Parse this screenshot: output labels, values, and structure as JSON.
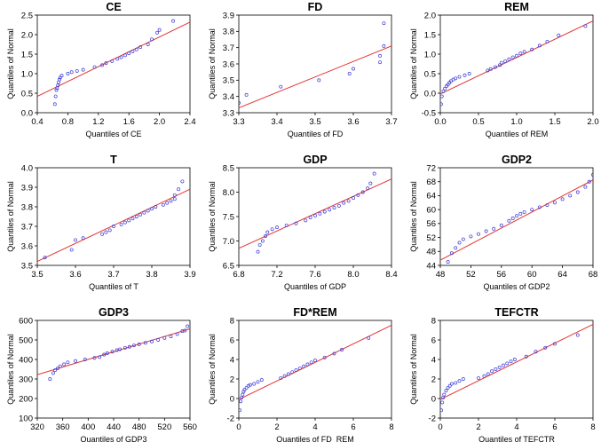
{
  "chart_data": [
    {
      "type": "scatter",
      "title": "CE",
      "xlabel": "Quantiles of CE",
      "ylabel": "Quantiles of Normal",
      "xlim": [
        0.4,
        2.4
      ],
      "ylim": [
        0.0,
        2.5
      ],
      "xticks": [
        "0.4",
        "0.8",
        "1.2",
        "1.6",
        "2.0",
        "2.4"
      ],
      "yticks": [
        "0.0",
        "0.5",
        "1.0",
        "1.5",
        "2.0",
        "2.5"
      ],
      "line": [
        [
          0.4,
          0.42
        ],
        [
          2.4,
          2.32
        ]
      ],
      "points": [
        [
          0.63,
          0.22
        ],
        [
          0.64,
          0.42
        ],
        [
          0.65,
          0.58
        ],
        [
          0.66,
          0.63
        ],
        [
          0.67,
          0.7
        ],
        [
          0.68,
          0.78
        ],
        [
          0.69,
          0.85
        ],
        [
          0.7,
          0.9
        ],
        [
          0.72,
          0.95
        ],
        [
          0.8,
          1.0
        ],
        [
          0.85,
          1.04
        ],
        [
          0.92,
          1.07
        ],
        [
          1.0,
          1.1
        ],
        [
          1.15,
          1.17
        ],
        [
          1.25,
          1.22
        ],
        [
          1.3,
          1.27
        ],
        [
          1.38,
          1.32
        ],
        [
          1.45,
          1.38
        ],
        [
          1.5,
          1.42
        ],
        [
          1.55,
          1.47
        ],
        [
          1.6,
          1.52
        ],
        [
          1.65,
          1.57
        ],
        [
          1.7,
          1.62
        ],
        [
          1.75,
          1.68
        ],
        [
          1.85,
          1.75
        ],
        [
          1.9,
          1.88
        ],
        [
          1.97,
          2.05
        ],
        [
          2.0,
          2.12
        ],
        [
          2.18,
          2.35
        ]
      ]
    },
    {
      "type": "scatter",
      "title": "FD",
      "xlabel": "Quantiles of FD",
      "ylabel": "Quantiles of Normal",
      "xlim": [
        3.3,
        3.7
      ],
      "ylim": [
        3.3,
        3.9
      ],
      "xticks": [
        "3.3",
        "3.4",
        "3.5",
        "3.6",
        "3.7"
      ],
      "yticks": [
        "3.3",
        "3.4",
        "3.5",
        "3.6",
        "3.7",
        "3.8",
        "3.9"
      ],
      "line": [
        [
          3.3,
          3.33
        ],
        [
          3.7,
          3.71
        ]
      ],
      "points": [
        [
          3.3,
          3.36
        ],
        [
          3.32,
          3.41
        ],
        [
          3.41,
          3.46
        ],
        [
          3.51,
          3.5
        ],
        [
          3.59,
          3.54
        ],
        [
          3.6,
          3.57
        ],
        [
          3.67,
          3.61
        ],
        [
          3.67,
          3.65
        ],
        [
          3.68,
          3.71
        ],
        [
          3.68,
          3.85
        ]
      ]
    },
    {
      "type": "scatter",
      "title": "REM",
      "xlabel": "Quantiles of REM",
      "ylabel": "Quantiles of Normal",
      "xlim": [
        0.0,
        2.0
      ],
      "ylim": [
        -0.5,
        2.0
      ],
      "xticks": [
        "0.0",
        "0.5",
        "1.0",
        "1.5",
        "2.0"
      ],
      "yticks": [
        "-0.5",
        "0.0",
        "0.5",
        "1.0",
        "1.5",
        "2.0"
      ],
      "line": [
        [
          0.0,
          -0.02
        ],
        [
          2.0,
          1.85
        ]
      ],
      "points": [
        [
          0.01,
          -0.28
        ],
        [
          0.02,
          -0.08
        ],
        [
          0.04,
          0.05
        ],
        [
          0.06,
          0.12
        ],
        [
          0.08,
          0.18
        ],
        [
          0.1,
          0.22
        ],
        [
          0.12,
          0.27
        ],
        [
          0.14,
          0.31
        ],
        [
          0.17,
          0.35
        ],
        [
          0.2,
          0.38
        ],
        [
          0.25,
          0.42
        ],
        [
          0.32,
          0.46
        ],
        [
          0.38,
          0.5
        ],
        [
          0.62,
          0.58
        ],
        [
          0.66,
          0.62
        ],
        [
          0.72,
          0.67
        ],
        [
          0.78,
          0.72
        ],
        [
          0.8,
          0.78
        ],
        [
          0.85,
          0.82
        ],
        [
          0.9,
          0.87
        ],
        [
          0.95,
          0.92
        ],
        [
          1.0,
          0.96
        ],
        [
          1.05,
          1.02
        ],
        [
          1.1,
          1.06
        ],
        [
          1.2,
          1.12
        ],
        [
          1.3,
          1.22
        ],
        [
          1.4,
          1.32
        ],
        [
          1.55,
          1.48
        ],
        [
          1.9,
          1.72
        ]
      ]
    },
    {
      "type": "scatter",
      "title": "T",
      "xlabel": "Quantiles of T",
      "ylabel": "Quantiles of Normal",
      "xlim": [
        3.5,
        3.9
      ],
      "ylim": [
        3.5,
        4.0
      ],
      "xticks": [
        "3.5",
        "3.6",
        "3.7",
        "3.8",
        "3.9"
      ],
      "yticks": [
        "3.5",
        "3.6",
        "3.7",
        "3.8",
        "3.9",
        "4.0"
      ],
      "line": [
        [
          3.5,
          3.52
        ],
        [
          3.9,
          3.89
        ]
      ],
      "points": [
        [
          3.52,
          3.54
        ],
        [
          3.59,
          3.58
        ],
        [
          3.6,
          3.63
        ],
        [
          3.62,
          3.64
        ],
        [
          3.67,
          3.66
        ],
        [
          3.68,
          3.67
        ],
        [
          3.69,
          3.68
        ],
        [
          3.7,
          3.7
        ],
        [
          3.72,
          3.71
        ],
        [
          3.73,
          3.72
        ],
        [
          3.74,
          3.73
        ],
        [
          3.75,
          3.74
        ],
        [
          3.76,
          3.75
        ],
        [
          3.77,
          3.76
        ],
        [
          3.78,
          3.77
        ],
        [
          3.79,
          3.78
        ],
        [
          3.8,
          3.79
        ],
        [
          3.81,
          3.8
        ],
        [
          3.83,
          3.81
        ],
        [
          3.84,
          3.82
        ],
        [
          3.85,
          3.83
        ],
        [
          3.86,
          3.84
        ],
        [
          3.86,
          3.86
        ],
        [
          3.87,
          3.89
        ],
        [
          3.88,
          3.93
        ]
      ]
    },
    {
      "type": "scatter",
      "title": "GDP",
      "xlabel": "Quantiles of GDP",
      "ylabel": "Quantiles of Normal",
      "xlim": [
        6.8,
        8.4
      ],
      "ylim": [
        6.5,
        8.5
      ],
      "xticks": [
        "6.8",
        "7.2",
        "7.6",
        "8.0",
        "8.4"
      ],
      "yticks": [
        "6.5",
        "7.0",
        "7.5",
        "8.0",
        "8.5"
      ],
      "line": [
        [
          6.8,
          6.85
        ],
        [
          8.4,
          8.27
        ]
      ],
      "points": [
        [
          7.0,
          6.78
        ],
        [
          7.02,
          6.92
        ],
        [
          7.05,
          7.0
        ],
        [
          7.08,
          7.1
        ],
        [
          7.1,
          7.18
        ],
        [
          7.15,
          7.24
        ],
        [
          7.2,
          7.28
        ],
        [
          7.3,
          7.32
        ],
        [
          7.4,
          7.36
        ],
        [
          7.5,
          7.42
        ],
        [
          7.55,
          7.48
        ],
        [
          7.6,
          7.52
        ],
        [
          7.65,
          7.56
        ],
        [
          7.7,
          7.6
        ],
        [
          7.75,
          7.64
        ],
        [
          7.8,
          7.68
        ],
        [
          7.85,
          7.72
        ],
        [
          7.9,
          7.78
        ],
        [
          7.95,
          7.82
        ],
        [
          8.0,
          7.88
        ],
        [
          8.05,
          7.94
        ],
        [
          8.1,
          8.0
        ],
        [
          8.15,
          8.08
        ],
        [
          8.18,
          8.18
        ],
        [
          8.22,
          8.38
        ]
      ]
    },
    {
      "type": "scatter",
      "title": "GDP2",
      "xlabel": "Quantiles of GDP2",
      "ylabel": "Quantiles of Normal",
      "xlim": [
        48,
        68
      ],
      "ylim": [
        44,
        72
      ],
      "xticks": [
        "48",
        "52",
        "56",
        "60",
        "64",
        "68"
      ],
      "yticks": [
        "44",
        "48",
        "52",
        "56",
        "60",
        "64",
        "68",
        "72"
      ],
      "line": [
        [
          48,
          45.5
        ],
        [
          68,
          68.5
        ]
      ],
      "points": [
        [
          49.0,
          45.0
        ],
        [
          49.5,
          47.5
        ],
        [
          50.0,
          49.0
        ],
        [
          50.5,
          50.5
        ],
        [
          51.0,
          51.5
        ],
        [
          52.0,
          52.3
        ],
        [
          53.0,
          53.0
        ],
        [
          54.0,
          53.8
        ],
        [
          55.0,
          54.5
        ],
        [
          56.0,
          55.5
        ],
        [
          57.0,
          56.8
        ],
        [
          57.5,
          57.5
        ],
        [
          58.0,
          58.2
        ],
        [
          58.5,
          58.8
        ],
        [
          59.0,
          59.3
        ],
        [
          60.0,
          60.0
        ],
        [
          61.0,
          60.7
        ],
        [
          62.0,
          61.3
        ],
        [
          63.0,
          62.0
        ],
        [
          64.0,
          63.0
        ],
        [
          65.0,
          64.0
        ],
        [
          66.0,
          65.0
        ],
        [
          67.0,
          66.5
        ],
        [
          67.5,
          68.0
        ],
        [
          68.0,
          70.0
        ]
      ]
    },
    {
      "type": "scatter",
      "title": "GDP3",
      "xlabel": "Quantiles of GDP3",
      "ylabel": "Quantiles of Normal",
      "xlim": [
        320,
        560
      ],
      "ylim": [
        100,
        600
      ],
      "xticks": [
        "320",
        "360",
        "400",
        "440",
        "480",
        "520",
        "560"
      ],
      "yticks": [
        "100",
        "200",
        "300",
        "400",
        "500",
        "600"
      ],
      "line": [
        [
          320,
          322
        ],
        [
          560,
          557
        ]
      ],
      "points": [
        [
          340,
          300
        ],
        [
          345,
          330
        ],
        [
          348,
          345
        ],
        [
          352,
          355
        ],
        [
          356,
          365
        ],
        [
          362,
          375
        ],
        [
          368,
          385
        ],
        [
          380,
          392
        ],
        [
          395,
          400
        ],
        [
          410,
          408
        ],
        [
          418,
          412
        ],
        [
          425,
          425
        ],
        [
          430,
          432
        ],
        [
          438,
          440
        ],
        [
          445,
          448
        ],
        [
          450,
          452
        ],
        [
          458,
          460
        ],
        [
          465,
          465
        ],
        [
          472,
          472
        ],
        [
          480,
          478
        ],
        [
          490,
          485
        ],
        [
          500,
          492
        ],
        [
          510,
          500
        ],
        [
          520,
          510
        ],
        [
          530,
          518
        ],
        [
          540,
          530
        ],
        [
          548,
          545
        ],
        [
          552,
          548
        ],
        [
          556,
          570
        ]
      ]
    },
    {
      "type": "scatter",
      "title": "FD*REM",
      "xlabel": "Quantiles of FD_REM",
      "ylabel": "Quantiles of Normal",
      "xlim": [
        0,
        8
      ],
      "ylim": [
        -2,
        8
      ],
      "xticks": [
        "0",
        "2",
        "4",
        "6",
        "8"
      ],
      "yticks": [
        "-2",
        "0",
        "2",
        "4",
        "6",
        "8"
      ],
      "line": [
        [
          0,
          -0.1
        ],
        [
          8,
          7.5
        ]
      ],
      "points": [
        [
          0.05,
          -1.2
        ],
        [
          0.1,
          -0.3
        ],
        [
          0.15,
          0.1
        ],
        [
          0.2,
          0.4
        ],
        [
          0.25,
          0.7
        ],
        [
          0.3,
          0.9
        ],
        [
          0.4,
          1.1
        ],
        [
          0.5,
          1.3
        ],
        [
          0.6,
          1.4
        ],
        [
          0.8,
          1.5
        ],
        [
          1.0,
          1.7
        ],
        [
          1.2,
          1.9
        ],
        [
          2.2,
          2.1
        ],
        [
          2.4,
          2.3
        ],
        [
          2.6,
          2.5
        ],
        [
          2.8,
          2.7
        ],
        [
          3.0,
          2.9
        ],
        [
          3.2,
          3.1
        ],
        [
          3.4,
          3.3
        ],
        [
          3.6,
          3.5
        ],
        [
          3.8,
          3.7
        ],
        [
          4.0,
          3.9
        ],
        [
          4.5,
          4.2
        ],
        [
          5.0,
          4.6
        ],
        [
          5.4,
          5.0
        ],
        [
          6.8,
          6.2
        ]
      ]
    },
    {
      "type": "scatter",
      "title": "TEFCTR",
      "xlabel": "Quantiles of TEFCTR",
      "ylabel": "Quantiles of Normal",
      "xlim": [
        0,
        8
      ],
      "ylim": [
        -2,
        8
      ],
      "xticks": [
        "0",
        "2",
        "4",
        "6",
        "8"
      ],
      "yticks": [
        "-2",
        "0",
        "2",
        "4",
        "6",
        "8"
      ],
      "line": [
        [
          0,
          -0.1
        ],
        [
          8,
          7.6
        ]
      ],
      "points": [
        [
          0.05,
          -1.2
        ],
        [
          0.1,
          -0.4
        ],
        [
          0.15,
          0.1
        ],
        [
          0.2,
          0.4
        ],
        [
          0.3,
          0.8
        ],
        [
          0.4,
          1.1
        ],
        [
          0.5,
          1.3
        ],
        [
          0.6,
          1.5
        ],
        [
          0.8,
          1.6
        ],
        [
          1.0,
          1.8
        ],
        [
          1.2,
          2.0
        ],
        [
          2.0,
          2.1
        ],
        [
          2.3,
          2.3
        ],
        [
          2.5,
          2.5
        ],
        [
          2.7,
          2.8
        ],
        [
          2.9,
          3.0
        ],
        [
          3.1,
          3.2
        ],
        [
          3.3,
          3.4
        ],
        [
          3.5,
          3.6
        ],
        [
          3.7,
          3.8
        ],
        [
          3.9,
          4.0
        ],
        [
          4.5,
          4.3
        ],
        [
          5.0,
          4.8
        ],
        [
          5.5,
          5.2
        ],
        [
          6.0,
          5.6
        ],
        [
          7.2,
          6.5
        ]
      ]
    }
  ]
}
